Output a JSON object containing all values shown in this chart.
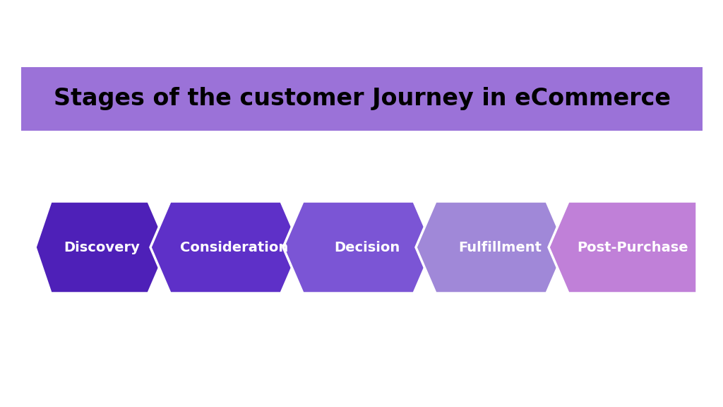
{
  "title": "Stages of the customer Journey in eCommerce",
  "title_bg_color": "#9b72d8",
  "title_text_color": "#000000",
  "title_fontsize": 24,
  "stages": [
    "Discovery",
    "Consideration",
    "Decision",
    "Fulfillment",
    "Post-Purchase"
  ],
  "stage_colors": [
    "#4e20b8",
    "#5e30c8",
    "#7b55d5",
    "#a088d8",
    "#c080d8"
  ],
  "text_color": "#ffffff",
  "text_fontsize": 14,
  "bg_color": "#ffffff"
}
